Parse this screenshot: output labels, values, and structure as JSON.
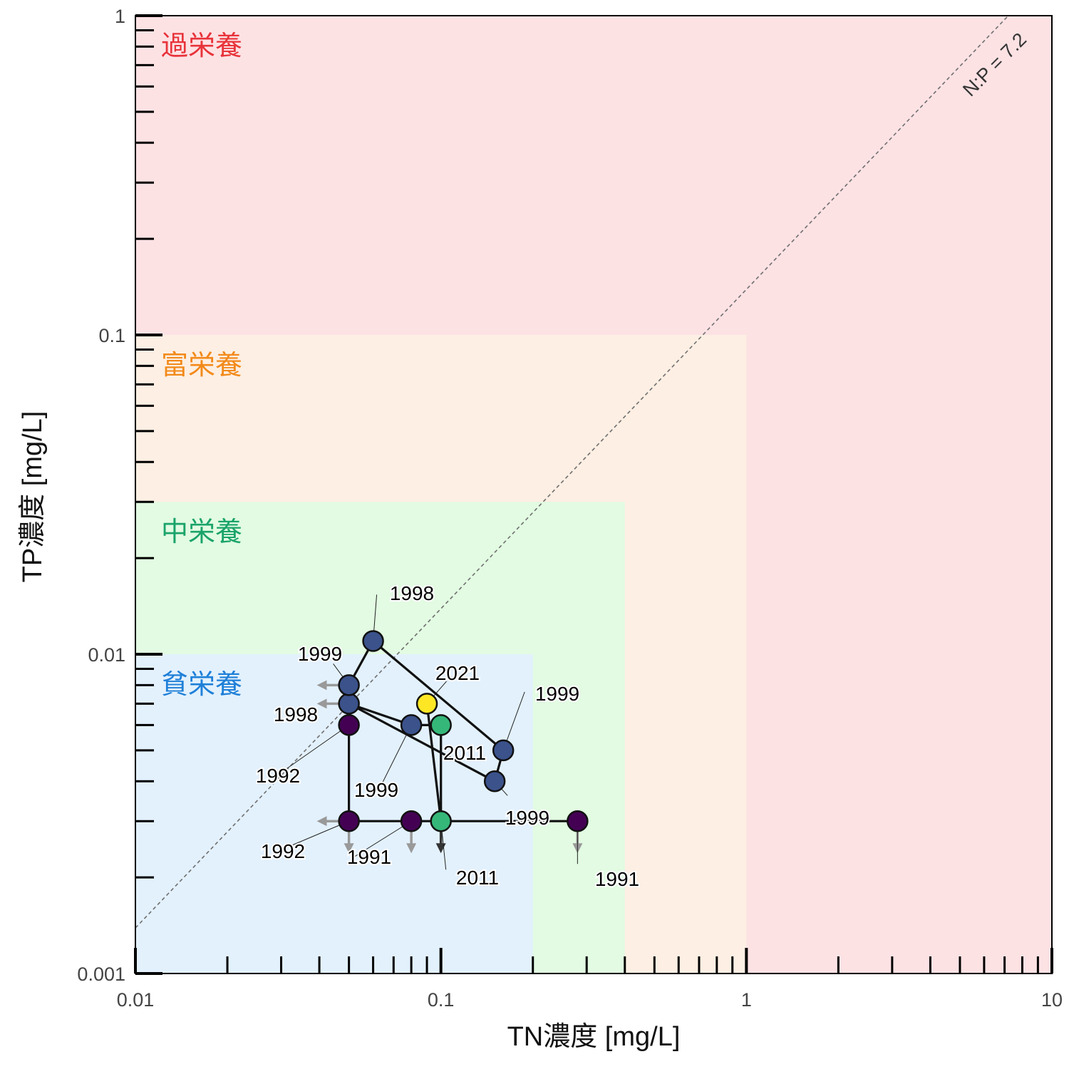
{
  "chart_data": {
    "type": "scatter",
    "xlabel": "TN濃度 [mg/L]",
    "ylabel": "TP濃度 [mg/L]",
    "x_scale": "log",
    "y_scale": "log",
    "xlim": [
      0.01,
      10
    ],
    "ylim": [
      0.001,
      1
    ],
    "x_tick_labels": [
      "0.01",
      "0.1",
      "1",
      "10"
    ],
    "y_tick_labels": [
      "0.001",
      "0.01",
      "0.1",
      "1"
    ],
    "zones": [
      {
        "label": "過栄養",
        "tn_max": 10,
        "tp_max": 1,
        "fill": "#fde2e4",
        "text_color": "#e8333a"
      },
      {
        "label": "富栄養",
        "tn_max": 1,
        "tp_max": 0.1,
        "fill": "#fdefe3",
        "text_color": "#f28a1a"
      },
      {
        "label": "中栄養",
        "tn_max": 0.4,
        "tp_max": 0.03,
        "fill": "#e2fbe2",
        "text_color": "#1aa36a"
      },
      {
        "label": "貧栄養",
        "tn_max": 0.2,
        "tp_max": 0.01,
        "fill": "#e3f1fd",
        "text_color": "#1f80d8"
      }
    ],
    "reference_line": {
      "label": "N:P = 7.2",
      "ratio": 7.2
    },
    "points": [
      {
        "year": "1991",
        "tn": 0.08,
        "tp": 0.003,
        "color": "#440154",
        "tn_upper_limit": false,
        "tp_upper_limit": true
      },
      {
        "year": "1991",
        "tn": 0.28,
        "tp": 0.003,
        "color": "#440154",
        "tn_upper_limit": false,
        "tp_upper_limit": true
      },
      {
        "year": "1992",
        "tn": 0.05,
        "tp": 0.003,
        "color": "#440154",
        "tn_upper_limit": true,
        "tp_upper_limit": true
      },
      {
        "year": "1992",
        "tn": 0.05,
        "tp": 0.006,
        "color": "#440154",
        "tn_upper_limit": false,
        "tp_upper_limit": false
      },
      {
        "year": "1998",
        "tn": 0.06,
        "tp": 0.011,
        "color": "#3b528b",
        "tn_upper_limit": false,
        "tp_upper_limit": false
      },
      {
        "year": "1998",
        "tn": 0.05,
        "tp": 0.007,
        "color": "#3b528b",
        "tn_upper_limit": true,
        "tp_upper_limit": false
      },
      {
        "year": "1999",
        "tn": 0.05,
        "tp": 0.008,
        "color": "#3b528b",
        "tn_upper_limit": true,
        "tp_upper_limit": false
      },
      {
        "year": "1999",
        "tn": 0.08,
        "tp": 0.006,
        "color": "#3b528b",
        "tn_upper_limit": false,
        "tp_upper_limit": false
      },
      {
        "year": "1999",
        "tn": 0.16,
        "tp": 0.005,
        "color": "#3b528b",
        "tn_upper_limit": false,
        "tp_upper_limit": false
      },
      {
        "year": "1999",
        "tn": 0.15,
        "tp": 0.004,
        "color": "#3b528b",
        "tn_upper_limit": false,
        "tp_upper_limit": false
      },
      {
        "year": "2011",
        "tn": 0.1,
        "tp": 0.006,
        "color": "#35b779",
        "tn_upper_limit": false,
        "tp_upper_limit": false
      },
      {
        "year": "2011",
        "tn": 0.1,
        "tp": 0.003,
        "color": "#35b779",
        "tn_upper_limit": false,
        "tp_upper_limit": true
      },
      {
        "year": "2021",
        "tn": 0.09,
        "tp": 0.007,
        "color": "#fde725",
        "tn_upper_limit": false,
        "tp_upper_limit": false
      }
    ]
  }
}
